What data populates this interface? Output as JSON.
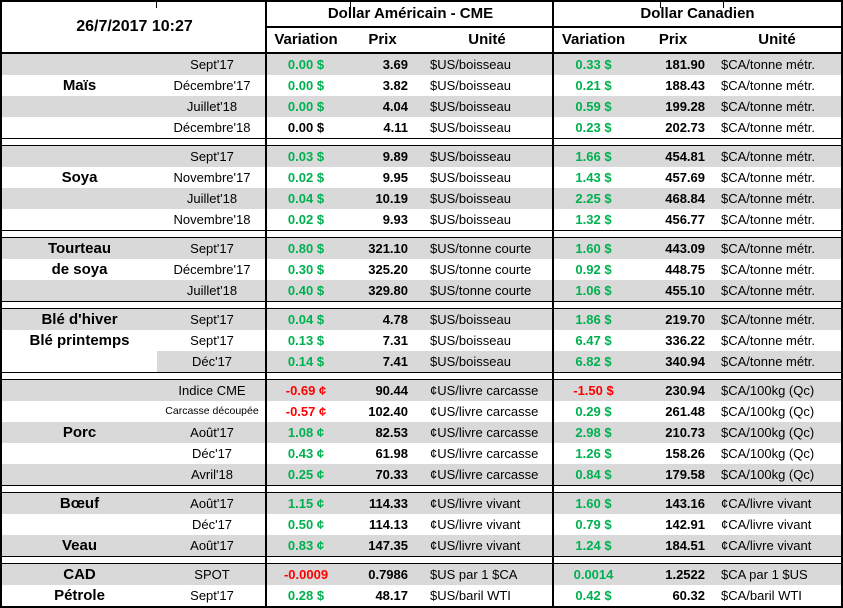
{
  "window": {
    "datetime": "26/7/2017 10:27"
  },
  "columns": {
    "group_us": "Dollar Américain - CME",
    "group_ca": "Dollar Canadien",
    "sub": [
      "Variation",
      "Prix",
      "Unité"
    ]
  },
  "colors": {
    "positive": "#00B050",
    "negative": "#FF0000",
    "neutral": "#000000",
    "stripe_row": "#D9D9D9"
  },
  "sections": [
    {
      "id": "mais",
      "rows": [
        {
          "commodity": "",
          "contract": "Sept'17",
          "us_var": "0.00 $",
          "us_var_tone": "positive",
          "us_prix": "3.69",
          "us_unit": "$US/boisseau",
          "ca_var": "0.33 $",
          "ca_var_tone": "positive",
          "ca_prix": "181.90",
          "ca_unit": "$CA/tonne métr.",
          "stripe": true
        },
        {
          "commodity": "Maïs",
          "contract": "Décembre'17",
          "us_var": "0.00 $",
          "us_var_tone": "positive",
          "us_prix": "3.82",
          "us_unit": "$US/boisseau",
          "ca_var": "0.21 $",
          "ca_var_tone": "positive",
          "ca_prix": "188.43",
          "ca_unit": "$CA/tonne métr.",
          "stripe": false
        },
        {
          "commodity": "",
          "contract": "Juillet'18",
          "us_var": "0.00 $",
          "us_var_tone": "positive",
          "us_prix": "4.04",
          "us_unit": "$US/boisseau",
          "ca_var": "0.59 $",
          "ca_var_tone": "positive",
          "ca_prix": "199.28",
          "ca_unit": "$CA/tonne métr.",
          "stripe": true
        },
        {
          "commodity": "",
          "contract": "Décembre'18",
          "us_var": "0.00 $",
          "us_var_tone": "neutral",
          "us_prix": "4.11",
          "us_unit": "$US/boisseau",
          "ca_var": "0.23 $",
          "ca_var_tone": "positive",
          "ca_prix": "202.73",
          "ca_unit": "$CA/tonne métr.",
          "stripe": false
        }
      ]
    },
    {
      "id": "soya",
      "rows": [
        {
          "commodity": "",
          "contract": "Sept'17",
          "us_var": "0.03 $",
          "us_var_tone": "positive",
          "us_prix": "9.89",
          "us_unit": "$US/boisseau",
          "ca_var": "1.66 $",
          "ca_var_tone": "positive",
          "ca_prix": "454.81",
          "ca_unit": "$CA/tonne métr.",
          "stripe": true
        },
        {
          "commodity": "Soya",
          "contract": "Novembre'17",
          "us_var": "0.02 $",
          "us_var_tone": "positive",
          "us_prix": "9.95",
          "us_unit": "$US/boisseau",
          "ca_var": "1.43 $",
          "ca_var_tone": "positive",
          "ca_prix": "457.69",
          "ca_unit": "$CA/tonne métr.",
          "stripe": false
        },
        {
          "commodity": "",
          "contract": "Juillet'18",
          "us_var": "0.04 $",
          "us_var_tone": "positive",
          "us_prix": "10.19",
          "us_unit": "$US/boisseau",
          "ca_var": "2.25 $",
          "ca_var_tone": "positive",
          "ca_prix": "468.84",
          "ca_unit": "$CA/tonne métr.",
          "stripe": true
        },
        {
          "commodity": "",
          "contract": "Novembre'18",
          "us_var": "0.02 $",
          "us_var_tone": "positive",
          "us_prix": "9.93",
          "us_unit": "$US/boisseau",
          "ca_var": "1.32 $",
          "ca_var_tone": "positive",
          "ca_prix": "456.77",
          "ca_unit": "$CA/tonne métr.",
          "stripe": false
        }
      ]
    },
    {
      "id": "tourteau-de-soya",
      "rows": [
        {
          "commodity": "Tourteau",
          "contract": "Sept'17",
          "us_var": "0.80 $",
          "us_var_tone": "positive",
          "us_prix": "321.10",
          "us_unit": "$US/tonne courte",
          "ca_var": "1.60 $",
          "ca_var_tone": "positive",
          "ca_prix": "443.09",
          "ca_unit": "$CA/tonne métr.",
          "stripe": true
        },
        {
          "commodity": "de soya",
          "contract": "Décembre'17",
          "us_var": "0.30 $",
          "us_var_tone": "positive",
          "us_prix": "325.20",
          "us_unit": "$US/tonne courte",
          "ca_var": "0.92 $",
          "ca_var_tone": "positive",
          "ca_prix": "448.75",
          "ca_unit": "$CA/tonne métr.",
          "stripe": false
        },
        {
          "commodity": "",
          "contract": "Juillet'18",
          "us_var": "0.40 $",
          "us_var_tone": "positive",
          "us_prix": "329.80",
          "us_unit": "$US/tonne courte",
          "ca_var": "1.06 $",
          "ca_var_tone": "positive",
          "ca_prix": "455.10",
          "ca_unit": "$CA/tonne métr.",
          "stripe": true
        }
      ]
    },
    {
      "id": "ble",
      "rows": [
        {
          "commodity": "Blé d'hiver",
          "contract": "Sept'17",
          "us_var": "0.04 $",
          "us_var_tone": "positive",
          "us_prix": "4.78",
          "us_unit": "$US/boisseau",
          "ca_var": "1.86 $",
          "ca_var_tone": "positive",
          "ca_prix": "219.70",
          "ca_unit": "$CA/tonne métr.",
          "stripe": true
        },
        {
          "commodity": "Blé printemps",
          "contract": "Sept'17",
          "us_var": "0.13 $",
          "us_var_tone": "positive",
          "us_prix": "7.31",
          "us_unit": "$US/boisseau",
          "ca_var": "6.47 $",
          "ca_var_tone": "positive",
          "ca_prix": "336.22",
          "ca_unit": "$CA/tonne métr.",
          "stripe": false
        },
        {
          "commodity": "",
          "contract": "Déc'17",
          "us_var": "0.14 $",
          "us_var_tone": "positive",
          "us_prix": "7.41",
          "us_unit": "$US/boisseau",
          "ca_var": "6.82 $",
          "ca_var_tone": "positive",
          "ca_prix": "340.94",
          "ca_unit": "$CA/tonne métr.",
          "stripe": true,
          "commodity_plain": true
        }
      ]
    },
    {
      "id": "porc",
      "rows": [
        {
          "commodity": "",
          "contract": "Indice CME",
          "us_var": "-0.69 ¢",
          "us_var_tone": "negative",
          "us_prix": "90.44",
          "us_unit": "¢US/livre carcasse",
          "ca_var": "-1.50 $",
          "ca_var_tone": "negative",
          "ca_prix": "230.94",
          "ca_unit": "$CA/100kg (Qc)",
          "stripe": true
        },
        {
          "commodity": "",
          "contract": "Carcasse découpée",
          "contract_small": true,
          "us_var": "-0.57 ¢",
          "us_var_tone": "negative",
          "us_prix": "102.40",
          "us_unit": "¢US/livre carcasse",
          "ca_var": "0.29 $",
          "ca_var_tone": "positive",
          "ca_prix": "261.48",
          "ca_unit": "$CA/100kg (Qc)",
          "stripe": false
        },
        {
          "commodity": "Porc",
          "contract": "Août'17",
          "us_var": "1.08 ¢",
          "us_var_tone": "positive",
          "us_prix": "82.53",
          "us_unit": "¢US/livre carcasse",
          "ca_var": "2.98 $",
          "ca_var_tone": "positive",
          "ca_prix": "210.73",
          "ca_unit": "$CA/100kg (Qc)",
          "stripe": true
        },
        {
          "commodity": "",
          "contract": "Déc'17",
          "us_var": "0.43 ¢",
          "us_var_tone": "positive",
          "us_prix": "61.98",
          "us_unit": "¢US/livre carcasse",
          "ca_var": "1.26 $",
          "ca_var_tone": "positive",
          "ca_prix": "158.26",
          "ca_unit": "$CA/100kg (Qc)",
          "stripe": false
        },
        {
          "commodity": "",
          "contract": "Avril'18",
          "us_var": "0.25 ¢",
          "us_var_tone": "positive",
          "us_prix": "70.33",
          "us_unit": "¢US/livre carcasse",
          "ca_var": "0.84 $",
          "ca_var_tone": "positive",
          "ca_prix": "179.58",
          "ca_unit": "$CA/100kg (Qc)",
          "stripe": true
        }
      ]
    },
    {
      "id": "boeuf-veau",
      "rows": [
        {
          "commodity": "Bœuf",
          "contract": "Août'17",
          "us_var": "1.15 ¢",
          "us_var_tone": "positive",
          "us_prix": "114.33",
          "us_unit": "¢US/livre vivant",
          "ca_var": "1.60 $",
          "ca_var_tone": "positive",
          "ca_prix": "143.16",
          "ca_unit": "¢CA/livre vivant",
          "stripe": true
        },
        {
          "commodity": "",
          "contract": "Déc'17",
          "us_var": "0.50 ¢",
          "us_var_tone": "positive",
          "us_prix": "114.13",
          "us_unit": "¢US/livre vivant",
          "ca_var": "0.79 $",
          "ca_var_tone": "positive",
          "ca_prix": "142.91",
          "ca_unit": "¢CA/livre vivant",
          "stripe": false
        },
        {
          "commodity": "Veau",
          "contract": "Août'17",
          "us_var": "0.83 ¢",
          "us_var_tone": "positive",
          "us_prix": "147.35",
          "us_unit": "¢US/livre vivant",
          "ca_var": "1.24 $",
          "ca_var_tone": "positive",
          "ca_prix": "184.51",
          "ca_unit": "¢CA/livre vivant",
          "stripe": true
        }
      ]
    },
    {
      "id": "cad-petrole",
      "rows": [
        {
          "commodity": "CAD",
          "contract": "SPOT",
          "us_var": "-0.0009",
          "us_var_tone": "negative",
          "us_prix": "0.7986",
          "us_unit": "$US par 1 $CA",
          "ca_var": "0.0014",
          "ca_var_tone": "positive",
          "ca_prix": "1.2522",
          "ca_unit": "$CA par 1 $US",
          "stripe": true
        },
        {
          "commodity": "Pétrole",
          "contract": "Sept'17",
          "us_var": "0.28 $",
          "us_var_tone": "positive",
          "us_prix": "48.17",
          "us_unit": "$US/baril WTI",
          "ca_var": "0.42 $",
          "ca_var_tone": "positive",
          "ca_prix": "60.32",
          "ca_unit": "$CA/baril WTI",
          "stripe": false
        }
      ]
    }
  ]
}
